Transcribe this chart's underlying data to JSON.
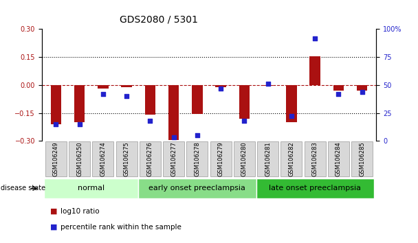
{
  "title": "GDS2080 / 5301",
  "samples": [
    "GSM106249",
    "GSM106250",
    "GSM106274",
    "GSM106275",
    "GSM106276",
    "GSM106277",
    "GSM106278",
    "GSM106279",
    "GSM106280",
    "GSM106281",
    "GSM106282",
    "GSM106283",
    "GSM106284",
    "GSM106285"
  ],
  "log10_ratio": [
    -0.21,
    -0.2,
    -0.02,
    -0.01,
    -0.16,
    -0.295,
    -0.155,
    -0.01,
    -0.18,
    -0.005,
    -0.2,
    0.155,
    -0.03,
    -0.03
  ],
  "percentile_rank": [
    15,
    15,
    42,
    40,
    18,
    3,
    5,
    47,
    18,
    51,
    22,
    92,
    42,
    44
  ],
  "groups": [
    {
      "label": "normal",
      "start": 0,
      "end": 3,
      "color": "#ccffcc"
    },
    {
      "label": "early onset preeclampsia",
      "start": 4,
      "end": 8,
      "color": "#88dd88"
    },
    {
      "label": "late onset preeclampsia",
      "start": 9,
      "end": 13,
      "color": "#33bb33"
    }
  ],
  "ylim_left": [
    -0.3,
    0.3
  ],
  "ylim_right": [
    0,
    100
  ],
  "yticks_left": [
    -0.3,
    -0.15,
    0,
    0.15,
    0.3
  ],
  "yticks_right": [
    0,
    25,
    50,
    75,
    100
  ],
  "hline_y": 0,
  "dotted_lines": [
    -0.15,
    0.15
  ],
  "bar_color": "#aa1111",
  "dot_color": "#2222cc",
  "bar_width": 0.45,
  "dot_size": 18,
  "title_fontsize": 10,
  "tick_fontsize": 7,
  "sample_fontsize": 6,
  "group_label_fontsize": 8,
  "legend_fontsize": 7.5
}
